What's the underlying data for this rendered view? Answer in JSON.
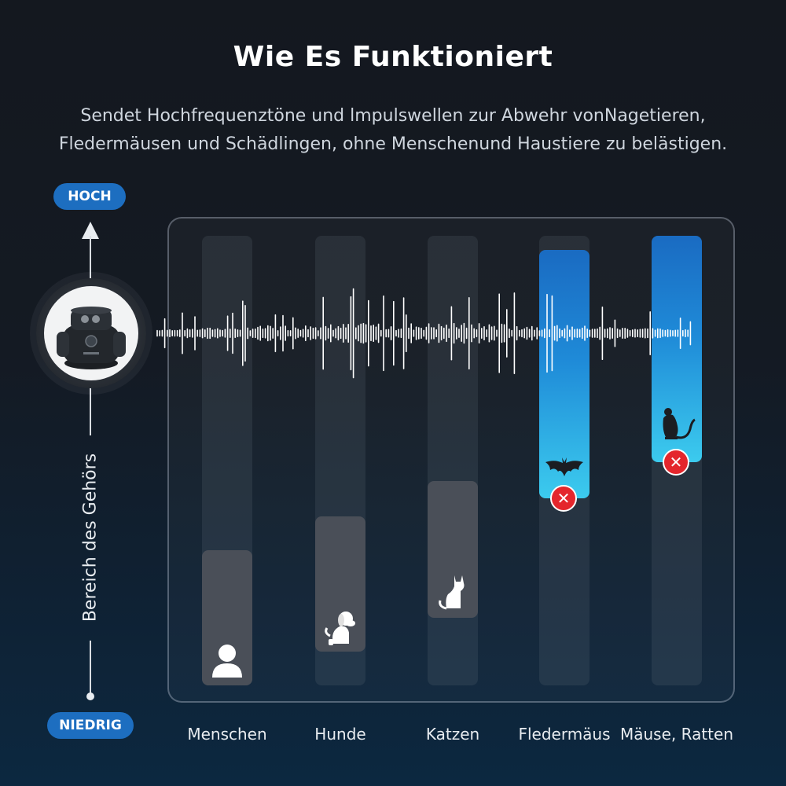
{
  "header": {
    "title": "Wie Es Funktioniert",
    "subtitle_line1": "Sendet Hochfrequenztöne und lmpulswellen zur Abwehr vonNagetieren,",
    "subtitle_line2": "Fledermäusen und Schädlingen, ohne Menschenund Haustiere zu belästigen."
  },
  "axis": {
    "high_label": "HOCH",
    "low_label": "NIEDRIG",
    "title": "Bereich des Gehörs"
  },
  "device": {
    "icon": "ultrasonic-repeller-device"
  },
  "columns": [
    {
      "label": "Menschen",
      "icon": "person-icon",
      "level": 0.3,
      "blocked": false
    },
    {
      "label": "Hunde",
      "icon": "dog-icon",
      "level": 0.38,
      "blocked": false
    },
    {
      "label": "Katzen",
      "icon": "cat-icon",
      "level": 0.46,
      "blocked": false
    },
    {
      "label": "Fledermäus",
      "icon": "bat-icon",
      "level": 1.0,
      "blocked": true
    },
    {
      "label": "Mäuse, Ratten",
      "icon": "rat-icon",
      "level": 1.0,
      "blocked": true
    }
  ],
  "colors": {
    "accent_blue": "#1d6ec0",
    "ultrasonic_gradient_top": "#1a6bc2",
    "ultrasonic_gradient_bottom": "#3ccbee",
    "blocked_red": "#e4262c"
  }
}
